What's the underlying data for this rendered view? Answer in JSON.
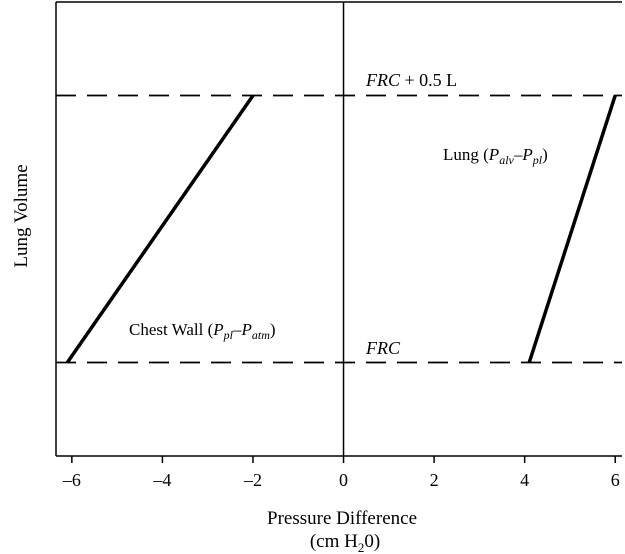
{
  "chart_data": {
    "type": "line",
    "title": "",
    "xlabel": "Pressure Difference",
    "xlabel_line2": "(cm H",
    "xlabel_line2_sub": "2",
    "xlabel_line2_end": "0)",
    "ylabel": "Lung Volume",
    "xlim": [
      -6.35,
      6.15
    ],
    "ylim": [
      -0.35,
      1.35
    ],
    "x_ticks": [
      -6,
      -4,
      -2,
      0,
      2,
      4,
      6
    ],
    "x_tick_labels": [
      "–6",
      "–4",
      "–2",
      "0",
      "2",
      "4",
      "6"
    ],
    "y_ticks_shown": false,
    "grid": false,
    "vertical_reference_x": 0,
    "reference_lines": [
      {
        "y": 1,
        "style": "dashed",
        "label_italic": "FRC",
        "label_rest": " + 0.5 L"
      },
      {
        "y": 0,
        "style": "dashed",
        "label_italic": "FRC",
        "label_rest": ""
      }
    ],
    "series": [
      {
        "name": "Chest Wall",
        "label": {
          "prefix": "Chest Wall (",
          "p1": "P",
          "p1_sub": "pl",
          "dash": "–",
          "p2": "P",
          "p2_sub": "atm",
          "suffix": ")"
        },
        "points": [
          {
            "x": -6.1,
            "y": 0
          },
          {
            "x": -2.0,
            "y": 1
          }
        ]
      },
      {
        "name": "Lung",
        "label": {
          "prefix": "Lung (",
          "p1": "P",
          "p1_sub": "alv",
          "dash": "–",
          "p2": "P",
          "p2_sub": "pl",
          "suffix": ")"
        },
        "points": [
          {
            "x": 4.1,
            "y": 0
          },
          {
            "x": 6.0,
            "y": 1
          }
        ]
      }
    ]
  }
}
